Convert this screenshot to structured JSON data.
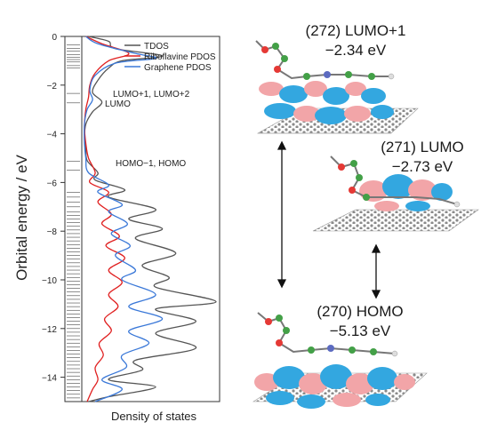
{
  "chart_data": {
    "type": "line",
    "ylabel": "Orbital energy / eV",
    "xlabel": "Density of states",
    "ylim": [
      -15,
      0
    ],
    "yticks": [
      0,
      -2,
      -4,
      -6,
      -8,
      -10,
      -12,
      -14
    ],
    "legend_placement": "top-right",
    "series": [
      {
        "name": "TDOS",
        "color": "#555555",
        "points": [
          [
            0.05,
            0
          ],
          [
            0.2,
            -0.2
          ],
          [
            0.25,
            -0.5
          ],
          [
            0.6,
            -0.8
          ],
          [
            0.3,
            -1.0
          ],
          [
            0.2,
            -1.3
          ],
          [
            0.12,
            -1.8
          ],
          [
            0.08,
            -2.3
          ],
          [
            0.15,
            -2.7
          ],
          [
            0.08,
            -3.1
          ],
          [
            0.03,
            -3.6
          ],
          [
            0.02,
            -4.2
          ],
          [
            0.03,
            -4.6
          ],
          [
            0.04,
            -5.1
          ],
          [
            0.12,
            -5.6
          ],
          [
            0.1,
            -5.9
          ],
          [
            0.32,
            -6.3
          ],
          [
            0.2,
            -6.6
          ],
          [
            0.55,
            -7.1
          ],
          [
            0.35,
            -7.5
          ],
          [
            0.6,
            -7.9
          ],
          [
            0.4,
            -8.3
          ],
          [
            0.7,
            -8.9
          ],
          [
            0.45,
            -9.4
          ],
          [
            0.65,
            -9.9
          ],
          [
            0.55,
            -10.3
          ],
          [
            1.0,
            -10.9
          ],
          [
            0.55,
            -11.2
          ],
          [
            0.85,
            -11.7
          ],
          [
            0.55,
            -12.2
          ],
          [
            0.85,
            -12.8
          ],
          [
            0.4,
            -13.3
          ],
          [
            0.45,
            -13.7
          ],
          [
            0.2,
            -14.1
          ],
          [
            0.55,
            -14.4
          ],
          [
            0.2,
            -14.8
          ],
          [
            0.05,
            -15
          ]
        ]
      },
      {
        "name": "Riboflavine PDOS",
        "color": "#e02020",
        "points": [
          [
            0.03,
            0
          ],
          [
            0.15,
            -0.3
          ],
          [
            0.35,
            -0.7
          ],
          [
            0.2,
            -1.0
          ],
          [
            0.1,
            -1.5
          ],
          [
            0.06,
            -2.0
          ],
          [
            0.05,
            -2.5
          ],
          [
            0.03,
            -3.0
          ],
          [
            0.02,
            -3.7
          ],
          [
            0.03,
            -4.4
          ],
          [
            0.05,
            -5.0
          ],
          [
            0.1,
            -5.6
          ],
          [
            0.06,
            -6.0
          ],
          [
            0.2,
            -6.4
          ],
          [
            0.12,
            -6.8
          ],
          [
            0.22,
            -7.3
          ],
          [
            0.15,
            -7.7
          ],
          [
            0.28,
            -8.2
          ],
          [
            0.18,
            -8.6
          ],
          [
            0.32,
            -9.1
          ],
          [
            0.2,
            -9.6
          ],
          [
            0.3,
            -10.1
          ],
          [
            0.2,
            -10.6
          ],
          [
            0.27,
            -11.1
          ],
          [
            0.17,
            -11.6
          ],
          [
            0.22,
            -12.1
          ],
          [
            0.13,
            -12.6
          ],
          [
            0.16,
            -13.1
          ],
          [
            0.1,
            -13.6
          ],
          [
            0.12,
            -14.1
          ],
          [
            0.08,
            -14.5
          ],
          [
            0.04,
            -15
          ]
        ]
      },
      {
        "name": "Graphene PDOS",
        "color": "#3a78d8",
        "points": [
          [
            0.03,
            0
          ],
          [
            0.12,
            -0.3
          ],
          [
            0.4,
            -0.7
          ],
          [
            0.55,
            -0.9
          ],
          [
            0.25,
            -1.1
          ],
          [
            0.1,
            -1.6
          ],
          [
            0.06,
            -2.2
          ],
          [
            0.08,
            -2.6
          ],
          [
            0.04,
            -3.0
          ],
          [
            0.02,
            -3.6
          ],
          [
            0.02,
            -4.4
          ],
          [
            0.03,
            -5.0
          ],
          [
            0.05,
            -5.6
          ],
          [
            0.2,
            -6.1
          ],
          [
            0.12,
            -6.4
          ],
          [
            0.3,
            -6.9
          ],
          [
            0.2,
            -7.2
          ],
          [
            0.34,
            -7.7
          ],
          [
            0.22,
            -8.1
          ],
          [
            0.36,
            -8.6
          ],
          [
            0.25,
            -9.0
          ],
          [
            0.4,
            -9.6
          ],
          [
            0.3,
            -10.0
          ],
          [
            0.55,
            -10.6
          ],
          [
            0.35,
            -11.1
          ],
          [
            0.6,
            -11.6
          ],
          [
            0.35,
            -12.1
          ],
          [
            0.5,
            -12.6
          ],
          [
            0.3,
            -13.1
          ],
          [
            0.33,
            -13.6
          ],
          [
            0.15,
            -14.1
          ],
          [
            0.3,
            -14.5
          ],
          [
            0.1,
            -15
          ]
        ]
      }
    ],
    "annotations": [
      {
        "text": "LUMO+1, LUMO+2",
        "y": -2.4
      },
      {
        "text": "LUMO",
        "y": -2.8
      },
      {
        "text": "HOMO−1, HOMO",
        "y": -5.4
      }
    ],
    "orbital_levels": [
      -0.35,
      -0.5,
      -0.6,
      -0.75,
      -0.85,
      -0.95,
      -1.05,
      -1.2,
      -1.3,
      -2.34,
      -2.73,
      -5.13,
      -5.5,
      -6.4,
      -6.6,
      -6.8,
      -7.0,
      -7.2,
      -7.35,
      -7.5,
      -7.65,
      -7.8,
      -7.95,
      -8.1,
      -8.25,
      -8.4,
      -8.55,
      -8.7,
      -8.85,
      -9.0,
      -9.15,
      -9.3,
      -9.45,
      -9.6,
      -9.75,
      -9.9,
      -10.05,
      -10.2,
      -10.35,
      -10.5,
      -10.65,
      -10.8,
      -10.95,
      -11.1,
      -11.25,
      -11.4,
      -11.55,
      -11.7,
      -11.85,
      -12.0,
      -12.15,
      -12.3,
      -12.45,
      -12.6,
      -12.75,
      -12.9,
      -13.05,
      -13.2,
      -13.35,
      -13.5,
      -13.65,
      -13.8,
      -13.95,
      -14.1,
      -14.25,
      -14.4,
      -14.55,
      -14.7,
      -14.85
    ]
  },
  "orbitals": {
    "lumo1": {
      "label": "(272) LUMO+1",
      "energy": "−2.34 eV"
    },
    "lumo": {
      "label": "(271) LUMO",
      "energy": "−2.73 eV"
    },
    "homo": {
      "label": "(270) HOMO",
      "energy": "−5.13 eV"
    }
  }
}
